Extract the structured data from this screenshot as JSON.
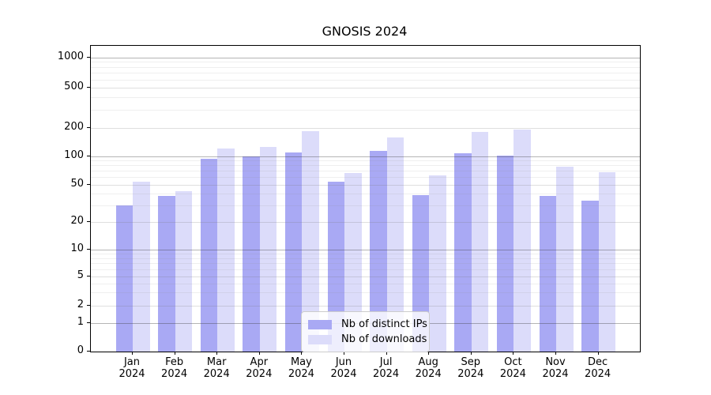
{
  "title": "GNOSIS 2024",
  "chart_data": {
    "type": "bar",
    "title": "GNOSIS 2024",
    "yscale": "symlog",
    "grid": true,
    "legend_position": "lower center",
    "ylim": [
      0,
      1400
    ],
    "yticks": [
      0,
      1,
      2,
      5,
      10,
      20,
      50,
      100,
      200,
      500,
      1000
    ],
    "categories": [
      "Jan",
      "Feb",
      "Mar",
      "Apr",
      "May",
      "Jun",
      "Jul",
      "Aug",
      "Sep",
      "Oct",
      "Nov",
      "Dec"
    ],
    "category_year": "2024",
    "series": [
      {
        "name": "Nb of distinct IPs",
        "color": "#a9a9f4",
        "values": [
          30,
          38,
          93,
          100,
          110,
          54,
          114,
          39,
          108,
          102,
          38,
          34
        ]
      },
      {
        "name": "Nb of downloads",
        "color": "#dcdcfa",
        "values": [
          54,
          43,
          120,
          125,
          185,
          66,
          157,
          63,
          180,
          192,
          77,
          68
        ]
      }
    ]
  },
  "colors": {
    "ips_bar": "#a9a9f4",
    "downloads_bar": "#dcdcfa",
    "legend_border": "#cccccc"
  }
}
